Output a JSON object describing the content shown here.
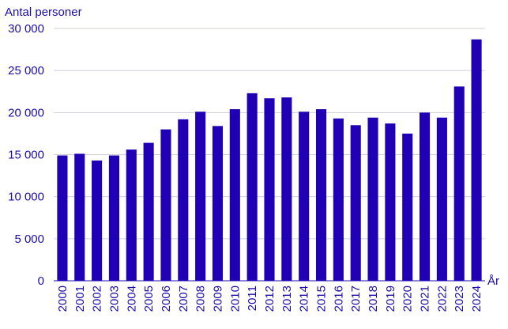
{
  "chart_data": {
    "type": "bar",
    "ylabel": "Antal personer",
    "xlabel": "År",
    "ylim": [
      0,
      30000
    ],
    "yticks": [
      0,
      5000,
      10000,
      15000,
      20000,
      25000,
      30000
    ],
    "ytick_labels": [
      "0",
      "5 000",
      "10 000",
      "15 000",
      "20 000",
      "25 000",
      "30 000"
    ],
    "grid": "horizontal",
    "categories": [
      "2000",
      "2001",
      "2002",
      "2003",
      "2004",
      "2005",
      "2006",
      "2007",
      "2008",
      "2009",
      "2010",
      "2011",
      "2012",
      "2013",
      "2014",
      "2015",
      "2016",
      "2017",
      "2018",
      "2019",
      "2020",
      "2021",
      "2022",
      "2023",
      "2024"
    ],
    "values": [
      14900,
      15100,
      14300,
      14900,
      15600,
      16400,
      18000,
      19200,
      20100,
      18400,
      20400,
      22300,
      21700,
      21800,
      20100,
      20400,
      19300,
      18500,
      19400,
      18700,
      17500,
      20000,
      19400,
      23100,
      28700
    ],
    "colors": {
      "bar": "#1f00b4",
      "text": "#1a0dab",
      "grid": "#cfcfe0",
      "axis": "#1a0dab"
    }
  }
}
